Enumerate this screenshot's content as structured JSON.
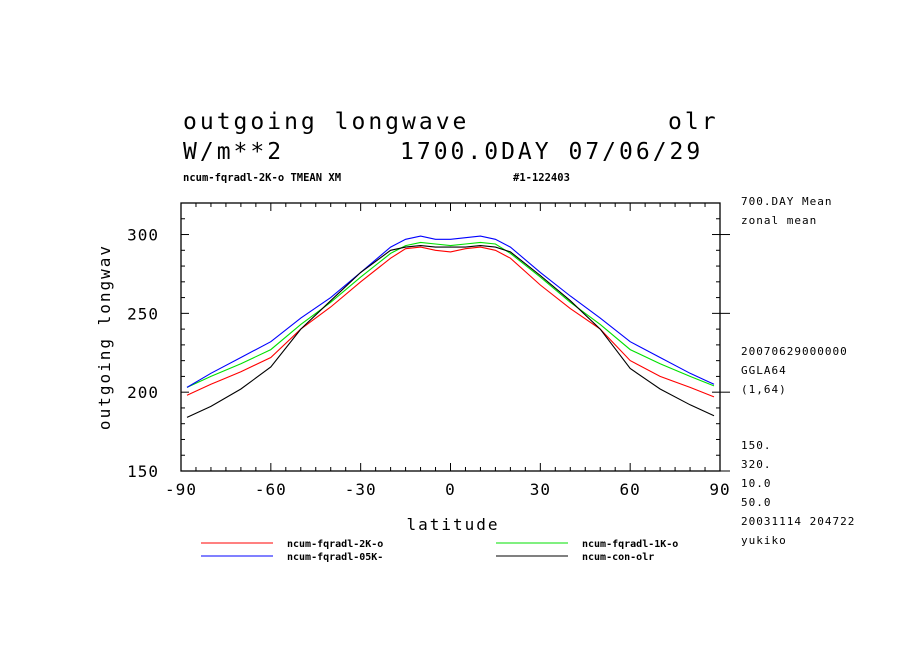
{
  "header": {
    "title_left": "outgoing longwave",
    "title_right": "olr",
    "units": "W/m**2",
    "date": "1700.0DAY 07/06/29",
    "experiment": "ncum-fqradl-2K-o TMEAN XM",
    "run_id": "#1-122403"
  },
  "side_info": {
    "line1": "700.DAY Mean",
    "line2": "zonal mean",
    "line3": "20070629000000",
    "line4": "GGLA64",
    "line5": "(1,64)",
    "line6": "150.",
    "line7": "320.",
    "line8": "10.0",
    "line9": "50.0",
    "line10": "20031114 204722",
    "line11": "yukiko"
  },
  "chart_data": {
    "type": "line",
    "xlabel": "latitude",
    "ylabel": "outgoing longwav",
    "xlim": [
      -90,
      90
    ],
    "ylim": [
      150,
      320
    ],
    "xticks": [
      -90,
      -60,
      -30,
      0,
      30,
      60,
      90
    ],
    "xtick_labels": [
      "-90",
      "-60",
      "-30",
      "0",
      "30",
      "60",
      "90"
    ],
    "yticks": [
      150,
      200,
      250,
      300
    ],
    "ytick_labels": [
      "150",
      "200",
      "250",
      "300"
    ],
    "x": [
      -88,
      -80,
      -70,
      -60,
      -50,
      -40,
      -30,
      -20,
      -15,
      -10,
      -5,
      0,
      5,
      10,
      15,
      20,
      30,
      40,
      50,
      60,
      70,
      80,
      88
    ],
    "series": [
      {
        "name": "ncum-fqradl-2K-o",
        "color": "#ff0000",
        "values": [
          198,
          205,
          213,
          222,
          240,
          254,
          270,
          285,
          291,
          292,
          290,
          289,
          291,
          292,
          290,
          285,
          268,
          253,
          240,
          220,
          210,
          203,
          197
        ]
      },
      {
        "name": "ncum-fqradl-1K-o",
        "color": "#00e000",
        "values": [
          203,
          210,
          218,
          227,
          243,
          257,
          273,
          288,
          293,
          295,
          294,
          293,
          294,
          295,
          294,
          288,
          273,
          257,
          243,
          227,
          218,
          210,
          204
        ]
      },
      {
        "name": "ncum-fqradl-05K-",
        "color": "#0000ff",
        "values": [
          203,
          212,
          222,
          232,
          247,
          260,
          276,
          292,
          297,
          299,
          297,
          297,
          298,
          299,
          297,
          292,
          276,
          261,
          247,
          232,
          222,
          212,
          205
        ]
      },
      {
        "name": "ncum-con-olr",
        "color": "#000000",
        "values": [
          184,
          191,
          202,
          216,
          240,
          258,
          276,
          290,
          292,
          293,
          292,
          292,
          292,
          293,
          292,
          289,
          274,
          258,
          240,
          215,
          202,
          192,
          185
        ]
      }
    ],
    "legend_position": "bottom"
  }
}
